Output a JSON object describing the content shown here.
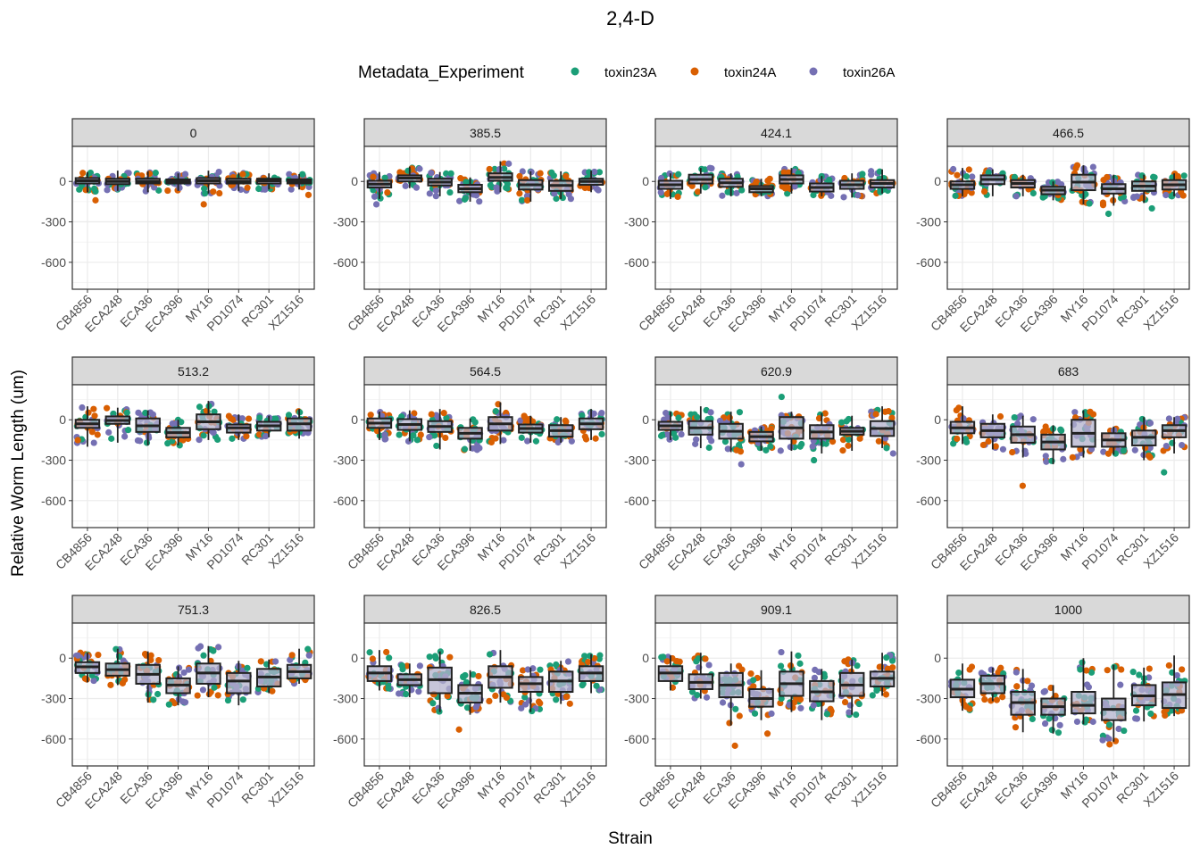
{
  "chart_data": {
    "type": "boxplot",
    "title": "2,4-D",
    "xlabel": "Strain",
    "ylabel": "Relative Worm Length (um)",
    "ylim": [
      -800,
      260
    ],
    "yticks": [
      0,
      -300,
      -600
    ],
    "legend": {
      "title": "Metadata_Experiment",
      "placement": "top",
      "entries": [
        {
          "name": "toxin23A",
          "color": "#1b9e77"
        },
        {
          "name": "toxin24A",
          "color": "#d95f02"
        },
        {
          "name": "toxin26A",
          "color": "#7570b3"
        }
      ]
    },
    "strains": [
      "CB4856",
      "ECA248",
      "ECA36",
      "ECA396",
      "MY16",
      "PD1074",
      "RC301",
      "XZ1516"
    ],
    "box_fill": "#b3b1cc",
    "panels": [
      {
        "label": "0",
        "boxes": [
          [
            -15,
            25,
            5,
            -80,
            70
          ],
          [
            -20,
            20,
            0,
            -70,
            80
          ],
          [
            -15,
            20,
            0,
            -80,
            75
          ],
          [
            -15,
            15,
            0,
            -70,
            60
          ],
          [
            -15,
            25,
            5,
            -90,
            80
          ],
          [
            -15,
            20,
            0,
            -70,
            65
          ],
          [
            -15,
            20,
            5,
            -60,
            60
          ],
          [
            -15,
            15,
            0,
            -60,
            55
          ]
        ],
        "outliers": [
          [
            -140
          ],
          [],
          [],
          [],
          [
            -170
          ],
          [],
          [],
          [
            -100
          ]
        ]
      },
      {
        "label": "385.5",
        "boxes": [
          [
            -45,
            5,
            -20,
            -130,
            70
          ],
          [
            0,
            45,
            25,
            -50,
            110
          ],
          [
            -30,
            20,
            -5,
            -110,
            70
          ],
          [
            -80,
            -25,
            -55,
            -150,
            30
          ],
          [
            5,
            60,
            30,
            -80,
            150
          ],
          [
            -60,
            10,
            -25,
            -150,
            75
          ],
          [
            -70,
            5,
            -30,
            -130,
            75
          ],
          [
            -25,
            20,
            0,
            -80,
            80
          ]
        ],
        "outliers": [
          [
            -170
          ],
          [],
          [],
          [],
          [],
          [],
          [],
          []
        ]
      },
      {
        "label": "424.1",
        "boxes": [
          [
            -55,
            5,
            -25,
            -130,
            60
          ],
          [
            -15,
            50,
            15,
            -90,
            100
          ],
          [
            -40,
            20,
            -10,
            -110,
            60
          ],
          [
            -80,
            -35,
            -55,
            -110,
            20
          ],
          [
            -15,
            45,
            15,
            -90,
            100
          ],
          [
            -75,
            -15,
            -45,
            -110,
            40
          ],
          [
            -55,
            5,
            -25,
            -120,
            60
          ],
          [
            -45,
            10,
            -15,
            -90,
            90
          ]
        ],
        "outliers": [
          [],
          [],
          [],
          [],
          [],
          [],
          [],
          []
        ]
      },
      {
        "label": "466.5",
        "boxes": [
          [
            -55,
            0,
            -25,
            -110,
            100
          ],
          [
            -20,
            45,
            15,
            -110,
            90
          ],
          [
            -45,
            10,
            -15,
            -110,
            50
          ],
          [
            -95,
            -40,
            -65,
            -140,
            0
          ],
          [
            -65,
            50,
            -5,
            -170,
            120
          ],
          [
            -90,
            -20,
            -55,
            -180,
            50
          ],
          [
            -70,
            0,
            -35,
            -160,
            50
          ],
          [
            -60,
            10,
            -25,
            -110,
            60
          ]
        ],
        "outliers": [
          [],
          [],
          [],
          [],
          [],
          [
            -240
          ],
          [
            -200
          ],
          []
        ]
      },
      {
        "label": "513.2",
        "boxes": [
          [
            -60,
            0,
            -30,
            -200,
            100
          ],
          [
            -30,
            25,
            -5,
            -170,
            90
          ],
          [
            -90,
            10,
            -45,
            -190,
            70
          ],
          [
            -130,
            -60,
            -95,
            -190,
            0
          ],
          [
            -70,
            40,
            -15,
            -150,
            140
          ],
          [
            -95,
            -35,
            -60,
            -150,
            40
          ],
          [
            -80,
            -15,
            -45,
            -130,
            30
          ],
          [
            -80,
            10,
            -30,
            -140,
            80
          ]
        ],
        "outliers": [
          [],
          [],
          [],
          [],
          [],
          [],
          [],
          []
        ]
      },
      {
        "label": "564.5",
        "boxes": [
          [
            -60,
            10,
            -25,
            -150,
            60
          ],
          [
            -75,
            5,
            -35,
            -160,
            70
          ],
          [
            -90,
            -10,
            -50,
            -220,
            80
          ],
          [
            -140,
            -60,
            -100,
            -230,
            10
          ],
          [
            -80,
            20,
            -30,
            -180,
            130
          ],
          [
            -95,
            -35,
            -65,
            -170,
            30
          ],
          [
            -125,
            -40,
            -80,
            -170,
            20
          ],
          [
            -70,
            10,
            -30,
            -150,
            80
          ]
        ],
        "outliers": [
          [],
          [],
          [],
          [],
          [],
          [],
          [],
          []
        ]
      },
      {
        "label": "620.9",
        "boxes": [
          [
            -75,
            -15,
            -45,
            -150,
            60
          ],
          [
            -110,
            -10,
            -60,
            -210,
            100
          ],
          [
            -140,
            -30,
            -85,
            -240,
            60
          ],
          [
            -160,
            -90,
            -125,
            -230,
            -50
          ],
          [
            -140,
            20,
            -60,
            -230,
            60
          ],
          [
            -140,
            -40,
            -90,
            -250,
            50
          ],
          [
            -110,
            -60,
            -85,
            -230,
            30
          ],
          [
            -120,
            -10,
            -65,
            -210,
            100
          ]
        ],
        "outliers": [
          [],
          [],
          [
            -330
          ],
          [],
          [
            170
          ],
          [
            -300
          ],
          [],
          [
            -250
          ]
        ]
      },
      {
        "label": "683",
        "boxes": [
          [
            -100,
            -15,
            -60,
            -180,
            100
          ],
          [
            -130,
            -30,
            -80,
            -220,
            40
          ],
          [
            -170,
            -50,
            -110,
            -280,
            30
          ],
          [
            -220,
            -110,
            -165,
            -330,
            -40
          ],
          [
            -200,
            0,
            -100,
            -280,
            70
          ],
          [
            -200,
            -100,
            -150,
            -260,
            -50
          ],
          [
            -190,
            -80,
            -130,
            -300,
            20
          ],
          [
            -130,
            -40,
            -80,
            -250,
            20
          ]
        ],
        "outliers": [
          [],
          [],
          [
            -490
          ],
          [],
          [],
          [],
          [],
          [
            -390
          ]
        ]
      },
      {
        "label": "751.3",
        "boxes": [
          [
            -110,
            -30,
            -65,
            -180,
            40
          ],
          [
            -130,
            -40,
            -85,
            -200,
            70
          ],
          [
            -190,
            -50,
            -120,
            -330,
            50
          ],
          [
            -260,
            -150,
            -200,
            -350,
            -60
          ],
          [
            -190,
            -40,
            -110,
            -290,
            90
          ],
          [
            -260,
            -110,
            -170,
            -350,
            -20
          ],
          [
            -210,
            -80,
            -140,
            -260,
            -10
          ],
          [
            -150,
            -50,
            -100,
            -190,
            70
          ]
        ],
        "outliers": [
          [],
          [],
          [],
          [],
          [],
          [],
          [],
          []
        ]
      },
      {
        "label": "826.5",
        "boxes": [
          [
            -170,
            -60,
            -110,
            -240,
            60
          ],
          [
            -200,
            -120,
            -160,
            -290,
            -40
          ],
          [
            -260,
            -70,
            -160,
            -400,
            50
          ],
          [
            -330,
            -200,
            -260,
            -420,
            -90
          ],
          [
            -220,
            -60,
            -140,
            -330,
            60
          ],
          [
            -250,
            -140,
            -190,
            -400,
            -70
          ],
          [
            -250,
            -100,
            -170,
            -340,
            -20
          ],
          [
            -170,
            -60,
            -110,
            -260,
            30
          ]
        ],
        "outliers": [
          [],
          [],
          [],
          [
            -530
          ],
          [],
          [],
          [],
          []
        ]
      },
      {
        "label": "909.1",
        "boxes": [
          [
            -170,
            -60,
            -110,
            -240,
            20
          ],
          [
            -230,
            -120,
            -180,
            -300,
            40
          ],
          [
            -290,
            -110,
            -200,
            -500,
            -40
          ],
          [
            -360,
            -230,
            -300,
            -460,
            -90
          ],
          [
            -280,
            -100,
            -190,
            -400,
            50
          ],
          [
            -320,
            -170,
            -250,
            -460,
            -80
          ],
          [
            -280,
            -110,
            -200,
            -420,
            -10
          ],
          [
            -210,
            -100,
            -150,
            -280,
            40
          ]
        ],
        "outliers": [
          [],
          [],
          [
            -650
          ],
          [
            -560
          ],
          [],
          [],
          [],
          []
        ]
      },
      {
        "label": "1000",
        "boxes": [
          [
            -290,
            -160,
            -230,
            -390,
            -40
          ],
          [
            -260,
            -130,
            -190,
            -320,
            -70
          ],
          [
            -420,
            -250,
            -330,
            -550,
            -80
          ],
          [
            -420,
            -300,
            -360,
            -560,
            -200
          ],
          [
            -410,
            -250,
            -350,
            -490,
            0
          ],
          [
            -460,
            -300,
            -380,
            -620,
            -50
          ],
          [
            -350,
            -200,
            -280,
            -470,
            -70
          ],
          [
            -370,
            -180,
            -270,
            -430,
            20
          ]
        ],
        "outliers": [
          [],
          [],
          [],
          [],
          [],
          [
            -640
          ],
          [],
          []
        ]
      }
    ]
  }
}
